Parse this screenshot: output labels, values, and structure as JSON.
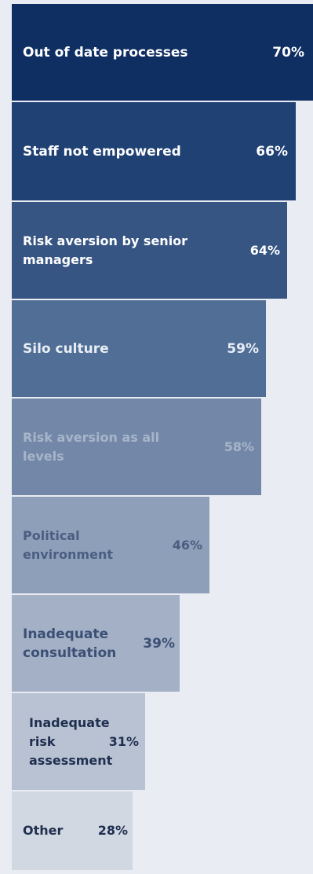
{
  "chart_data": {
    "type": "bar",
    "orientation": "horizontal",
    "categories": [
      "Out of date processes",
      "Staff not empowered",
      "Risk aversion  by senior managers",
      "Silo culture",
      "Risk aversion  as all levels",
      "Political environment",
      "Inadequate consultation",
      "Inadequate risk assessment",
      "Other"
    ],
    "values": [
      70,
      66,
      64,
      59,
      58,
      46,
      39,
      31,
      28
    ],
    "value_labels": [
      "70%",
      "66%",
      "64%",
      "59%",
      "58%",
      "46%",
      "39%",
      "31%",
      "28%"
    ],
    "xlim": [
      0,
      70
    ],
    "grid": false,
    "legend": "none"
  },
  "colors": {
    "background": "#e9ecf2",
    "bars": [
      "#0f2e62",
      "#1f4174",
      "#365583",
      "#516f96",
      "#7388a8",
      "#8e9fba",
      "#a3b0c5",
      "#b9c2d2",
      "#d2d8e2"
    ],
    "text": [
      "#ffffff",
      "#ffffff",
      "#ffffff",
      "#e9eef6",
      "#a7b5ca",
      "#4a5e80",
      "#3c5076",
      "#1f2f4f",
      "#1f2f4f"
    ]
  }
}
